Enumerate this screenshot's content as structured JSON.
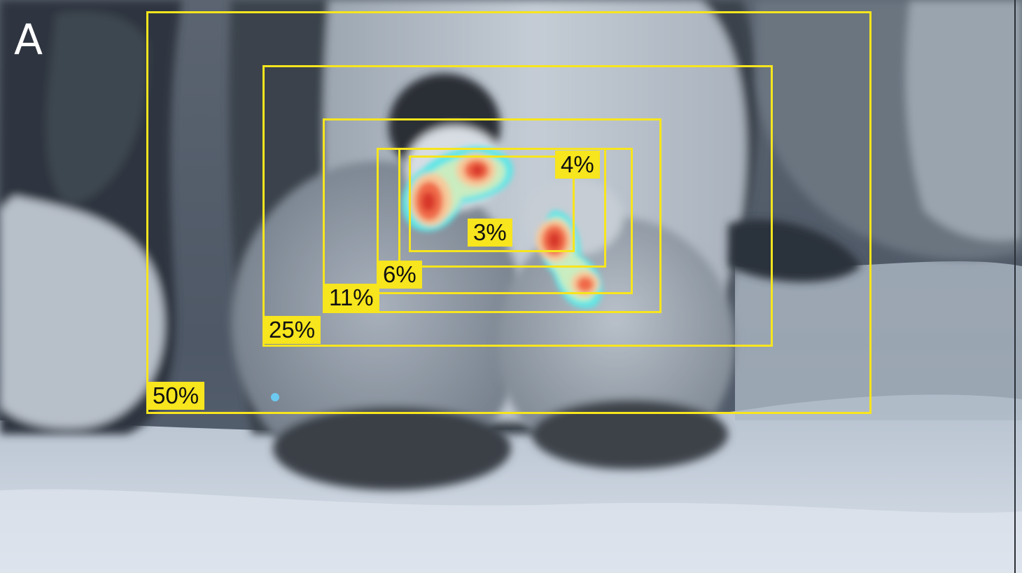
{
  "panel": {
    "letter": "A"
  },
  "overlay": {
    "box_color": "#f7e51d",
    "heat_colors": [
      "#5fe6e6",
      "#c9ecc0",
      "#f7c99a",
      "#f06a4a",
      "#d8392c"
    ],
    "boxes": [
      {
        "id": "50",
        "label": "50%"
      },
      {
        "id": "25",
        "label": "25%"
      },
      {
        "id": "11",
        "label": "11%"
      },
      {
        "id": "6",
        "label": "6%"
      },
      {
        "id": "4",
        "label": "4%"
      },
      {
        "id": "3",
        "label": "3%"
      }
    ]
  }
}
